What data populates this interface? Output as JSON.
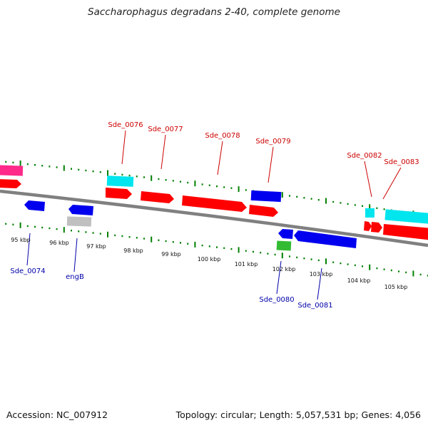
{
  "title": "Saccharophagus degradans 2-40, complete genome",
  "footer": {
    "accession": "Accession: NC_007912",
    "stats": "Topology: circular; Length: 5,057,531 bp; Genes: 4,056"
  },
  "scale_labels": [
    "95 kbp",
    "96 kbp",
    "97 kbp",
    "98 kbp",
    "99 kbp",
    "100 kbp",
    "101 kbp",
    "102 kbp",
    "103 kbp",
    "104 kbp",
    "105 kbp"
  ],
  "colors": {
    "forward_label": "#cc0000",
    "reverse_label": "#0000aa",
    "cds_forward": "#ff0000",
    "cds_reverse": "#0000ee",
    "rna": "#00e5ee",
    "pseudo": "#c0c0c0",
    "other": "#33bb33",
    "tick": "#008000",
    "backbone": "#808080"
  },
  "gene_labels": {
    "forward": [
      "Sde_0076",
      "Sde_0077",
      "Sde_0078",
      "Sde_0079",
      "Sde_0082",
      "Sde_0083"
    ],
    "reverse": [
      "Sde_0074",
      "engB",
      "Sde_0080",
      "Sde_0081"
    ]
  }
}
